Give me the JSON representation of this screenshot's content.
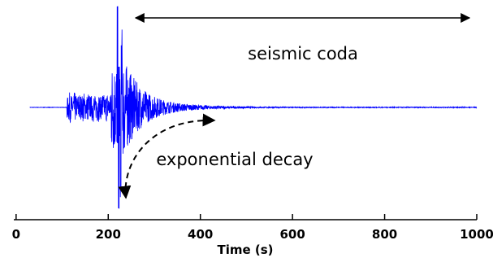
{
  "chart_data": {
    "type": "line",
    "title": "",
    "xlabel": "Time (s)",
    "ylabel": "",
    "xlim": [
      -5,
      1000
    ],
    "ylim": [
      -1,
      1
    ],
    "x_ticks": [
      0,
      200,
      400,
      600,
      800,
      1000
    ],
    "x_tick_labels": [
      "0",
      "200",
      "400",
      "600",
      "800",
      "1000"
    ],
    "series": [
      {
        "color": "#0000ff",
        "description_points": [
          [
            30,
            0.0
          ],
          [
            110,
            0.0
          ],
          [
            112,
            0.12
          ],
          [
            150,
            -0.14
          ],
          [
            200,
            0.16
          ],
          [
            215,
            -0.5
          ],
          [
            222,
            1.0
          ],
          [
            224,
            -1.0
          ],
          [
            230,
            0.6
          ],
          [
            240,
            -0.3
          ],
          [
            260,
            0.1
          ],
          [
            300,
            -0.05
          ],
          [
            400,
            0.01
          ],
          [
            1000,
            0.0
          ]
        ]
      }
    ],
    "annotations": [
      {
        "text": "seismic coda",
        "arrow": "double-headed",
        "from_x": 262,
        "to_x": 1000
      },
      {
        "text": "exponential decay",
        "arrow": "dashed curved"
      }
    ],
    "grid": false,
    "legend": "none"
  }
}
